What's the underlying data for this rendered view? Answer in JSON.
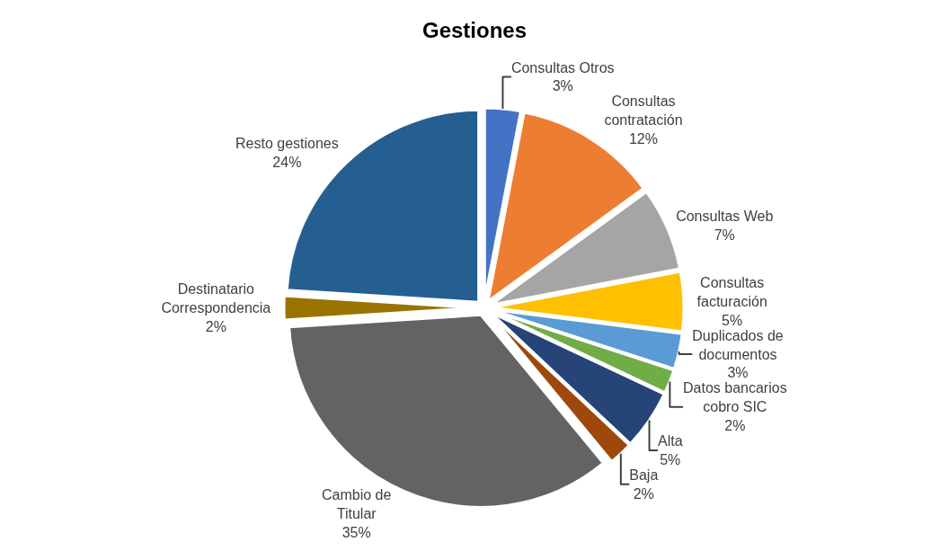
{
  "chart_data": {
    "type": "pie",
    "title": "Gestiones",
    "categories": [
      "Consultas Otros",
      "Consultas contratación",
      "Consultas Web",
      "Consultas facturación",
      "Duplicados de documentos",
      "Datos bancarios cobro SIC",
      "Alta",
      "Baja",
      "Cambio de Titular",
      "Destinatario Correspondencia",
      "Resto gestiones"
    ],
    "values": [
      3,
      12,
      7,
      5,
      3,
      2,
      5,
      2,
      35,
      2,
      24
    ],
    "value_labels": [
      "3%",
      "12%",
      "7%",
      "5%",
      "3%",
      "2%",
      "5%",
      "2%",
      "35%",
      "2%",
      "24%"
    ],
    "colors": [
      "#4472c4",
      "#ed7d31",
      "#a5a5a5",
      "#ffc000",
      "#5b9bd5",
      "#70ad47",
      "#264478",
      "#9e480e",
      "#636363",
      "#997300",
      "#255e91"
    ],
    "legend": false
  }
}
